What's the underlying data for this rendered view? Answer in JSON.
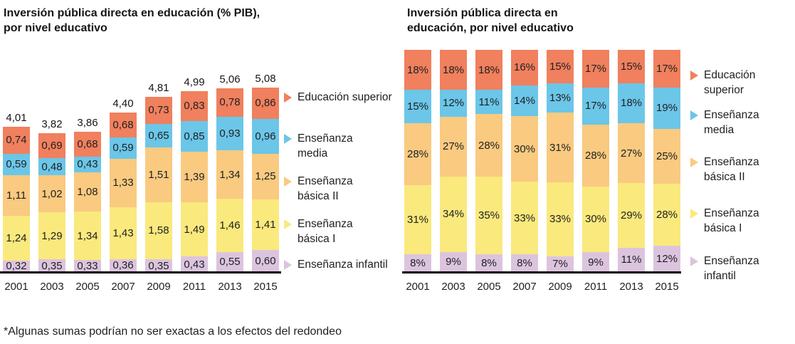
{
  "page": {
    "footnote": "*Algunas sumas podrían no ser exactas a los efectos del redondeo"
  },
  "colors": {
    "educacion_superior": "#F0805E",
    "ensenanza_media": "#6BC6E8",
    "ensenanza_basica_2": "#F9CA80",
    "ensenanza_basica_1": "#FAE97D",
    "ensenanza_infantil": "#DCC4DF",
    "axis_line": "#000000",
    "text": "#1F1F1F"
  },
  "chart_data": [
    {
      "id": "inversion-pib",
      "type": "bar",
      "stacked": true,
      "percent": false,
      "title": "Inversión pública directa en educación (% PIB),\npor nivel educativo",
      "value_format": "decimal-comma",
      "stack_order": "top-to-bottom",
      "grid": false,
      "legend_position": "right",
      "categories": [
        "2001",
        "2003",
        "2005",
        "2007",
        "2009",
        "2011",
        "2013",
        "2015"
      ],
      "totals": [
        4.01,
        3.82,
        3.86,
        4.4,
        4.81,
        4.99,
        5.06,
        5.08
      ],
      "series": [
        {
          "name": "Educación superior",
          "color_key": "educacion_superior",
          "values": [
            0.74,
            0.69,
            0.68,
            0.68,
            0.73,
            0.83,
            0.78,
            0.86
          ]
        },
        {
          "name": "Enseñanza media",
          "color_key": "ensenanza_media",
          "values": [
            0.59,
            0.48,
            0.43,
            0.59,
            0.65,
            0.85,
            0.93,
            0.96
          ]
        },
        {
          "name": "Enseñanza básica II",
          "color_key": "ensenanza_basica_2",
          "values": [
            1.11,
            1.02,
            1.08,
            1.33,
            1.51,
            1.39,
            1.34,
            1.25
          ]
        },
        {
          "name": "Enseñanza básica I",
          "color_key": "ensenanza_basica_1",
          "values": [
            1.24,
            1.29,
            1.34,
            1.43,
            1.58,
            1.49,
            1.46,
            1.41
          ]
        },
        {
          "name": "Enseñanza infantil",
          "color_key": "ensenanza_infantil",
          "values": [
            0.32,
            0.35,
            0.33,
            0.36,
            0.35,
            0.43,
            0.55,
            0.6
          ]
        }
      ],
      "legend": [
        {
          "label": "Educación superior",
          "color_key": "educacion_superior"
        },
        {
          "label": "Enseñanza\nmedia",
          "color_key": "ensenanza_media"
        },
        {
          "label": "Enseñanza\nbásica II",
          "color_key": "ensenanza_basica_2"
        },
        {
          "label": "Enseñanza\nbásica I",
          "color_key": "ensenanza_basica_1"
        },
        {
          "label": "Enseñanza infantil",
          "color_key": "ensenanza_infantil"
        }
      ]
    },
    {
      "id": "inversion-porcentaje",
      "type": "bar",
      "stacked": true,
      "percent": true,
      "title": "Inversión pública directa en\neducación, por nivel educativo",
      "value_format": "percent",
      "stack_order": "top-to-bottom",
      "grid": false,
      "legend_position": "right",
      "categories": [
        "2001",
        "2003",
        "2005",
        "2007",
        "2009",
        "2011",
        "2013",
        "2015"
      ],
      "series": [
        {
          "name": "Educación superior",
          "color_key": "educacion_superior",
          "values": [
            18,
            18,
            18,
            16,
            15,
            17,
            15,
            17
          ]
        },
        {
          "name": "Enseñanza media",
          "color_key": "ensenanza_media",
          "values": [
            15,
            12,
            11,
            14,
            13,
            17,
            18,
            19
          ]
        },
        {
          "name": "Enseñanza básica II",
          "color_key": "ensenanza_basica_2",
          "values": [
            28,
            27,
            28,
            30,
            31,
            28,
            27,
            25
          ]
        },
        {
          "name": "Enseñanza básica I",
          "color_key": "ensenanza_basica_1",
          "values": [
            31,
            34,
            35,
            33,
            33,
            30,
            29,
            28
          ]
        },
        {
          "name": "Enseñanza infantil",
          "color_key": "ensenanza_infantil",
          "values": [
            8,
            9,
            8,
            8,
            7,
            9,
            11,
            12
          ]
        }
      ],
      "legend": [
        {
          "label": "Educación\nsuperior",
          "color_key": "educacion_superior"
        },
        {
          "label": "Enseñanza\nmedia",
          "color_key": "ensenanza_media"
        },
        {
          "label": "Enseñanza\nbásica II",
          "color_key": "ensenanza_basica_2"
        },
        {
          "label": "Enseñanza\nbásica I",
          "color_key": "ensenanza_basica_1"
        },
        {
          "label": "Enseñanza\ninfantil",
          "color_key": "ensenanza_infantil"
        }
      ]
    }
  ]
}
